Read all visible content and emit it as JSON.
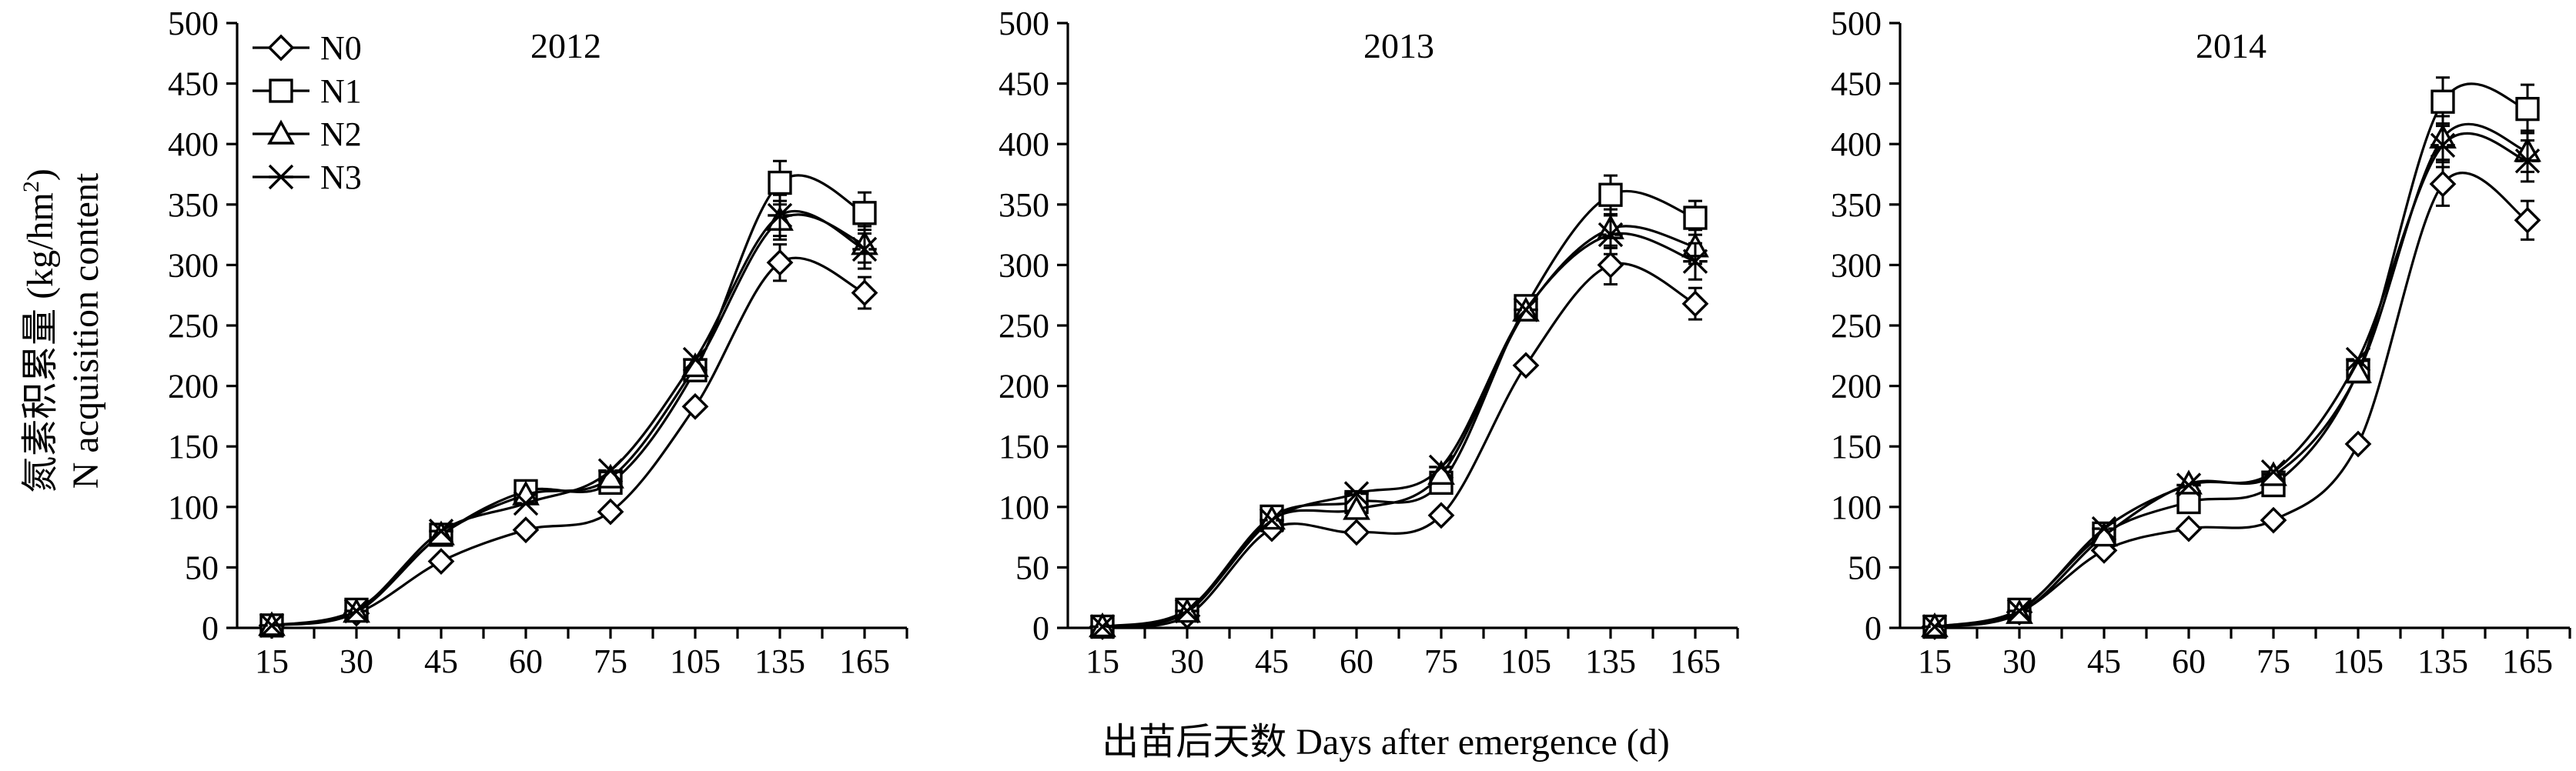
{
  "figure": {
    "ylabel_cn": "氮素积累量 (kg/hm",
    "ylabel_sup": "2",
    "ylabel_close": ")",
    "ylabel_en": "N acquisition content",
    "xlabel": "出苗后天数 Days after emergence (d)",
    "legend_position": "top-left of first panel",
    "legend": [
      "N0",
      "N1",
      "N2",
      "N3"
    ],
    "markers": {
      "N0": "diamond",
      "N1": "square",
      "N2": "triangle",
      "N3": "x-cross"
    }
  },
  "chart_data": [
    {
      "type": "line",
      "title": "2012",
      "categories": [
        "15",
        "30",
        "45",
        "60",
        "75",
        "105",
        "135",
        "165"
      ],
      "ylim": [
        0,
        500
      ],
      "yticks": [
        0,
        50,
        100,
        150,
        200,
        250,
        300,
        350,
        400,
        450,
        500
      ],
      "grid": false,
      "series": [
        {
          "name": "N0",
          "values": [
            2,
            12,
            55,
            81,
            96,
            183,
            302,
            277
          ],
          "errors": [
            0,
            0,
            0,
            0,
            0,
            0,
            15,
            13
          ]
        },
        {
          "name": "N1",
          "values": [
            2,
            15,
            77,
            113,
            120,
            213,
            368,
            343
          ],
          "errors": [
            0,
            0,
            0,
            0,
            0,
            0,
            18,
            17
          ]
        },
        {
          "name": "N2",
          "values": [
            2,
            13,
            77,
            110,
            124,
            216,
            337,
            317
          ],
          "errors": [
            0,
            0,
            0,
            0,
            0,
            0,
            16,
            15
          ]
        },
        {
          "name": "N3",
          "values": [
            2,
            14,
            80,
            103,
            130,
            222,
            341,
            313
          ],
          "errors": [
            0,
            0,
            0,
            0,
            0,
            0,
            17,
            16
          ]
        }
      ]
    },
    {
      "type": "line",
      "title": "2013",
      "categories": [
        "15",
        "30",
        "45",
        "60",
        "75",
        "105",
        "135",
        "165"
      ],
      "ylim": [
        0,
        500
      ],
      "yticks": [
        0,
        50,
        100,
        150,
        200,
        250,
        300,
        350,
        400,
        450,
        500
      ],
      "grid": false,
      "series": [
        {
          "name": "N0",
          "values": [
            1,
            10,
            82,
            79,
            93,
            217,
            300,
            268
          ],
          "errors": [
            0,
            0,
            0,
            0,
            0,
            0,
            16,
            13
          ]
        },
        {
          "name": "N1",
          "values": [
            1,
            15,
            92,
            104,
            120,
            266,
            358,
            339
          ],
          "errors": [
            0,
            0,
            0,
            0,
            0,
            0,
            16,
            14
          ]
        },
        {
          "name": "N2",
          "values": [
            1,
            13,
            90,
            98,
            127,
            262,
            330,
            315
          ],
          "errors": [
            0,
            0,
            0,
            0,
            0,
            0,
            16,
            14
          ]
        },
        {
          "name": "N3",
          "values": [
            1,
            14,
            89,
            111,
            133,
            263,
            325,
            303
          ],
          "errors": [
            0,
            0,
            0,
            0,
            0,
            0,
            16,
            15
          ]
        }
      ]
    },
    {
      "type": "line",
      "title": "2014",
      "categories": [
        "15",
        "30",
        "45",
        "60",
        "75",
        "105",
        "135",
        "165"
      ],
      "ylim": [
        0,
        500
      ],
      "yticks": [
        0,
        50,
        100,
        150,
        200,
        250,
        300,
        350,
        400,
        450,
        500
      ],
      "grid": false,
      "series": [
        {
          "name": "N0",
          "values": [
            1,
            13,
            64,
            82,
            89,
            152,
            367,
            337
          ],
          "errors": [
            0,
            0,
            0,
            0,
            0,
            0,
            18,
            16
          ]
        },
        {
          "name": "N1",
          "values": [
            1,
            15,
            78,
            104,
            118,
            212,
            435,
            429
          ],
          "errors": [
            0,
            0,
            0,
            0,
            0,
            0,
            20,
            20
          ]
        },
        {
          "name": "N2",
          "values": [
            1,
            12,
            76,
            119,
            126,
            211,
            405,
            394
          ],
          "errors": [
            0,
            0,
            0,
            0,
            0,
            0,
            18,
            17
          ]
        },
        {
          "name": "N3",
          "values": [
            1,
            14,
            82,
            118,
            129,
            222,
            399,
            386
          ],
          "errors": [
            0,
            0,
            0,
            0,
            0,
            0,
            18,
            17
          ]
        }
      ]
    }
  ]
}
